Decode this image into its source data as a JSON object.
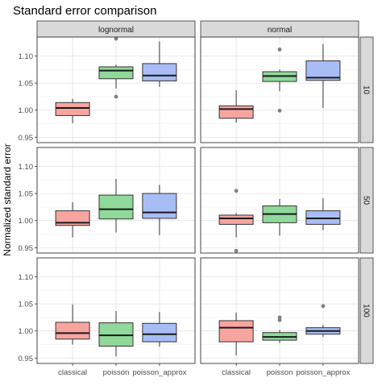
{
  "chart_data": {
    "type": "boxplot",
    "title": "Standard error comparison",
    "xlabel": "",
    "ylabel": "Normalized standard error",
    "categories": [
      "classical",
      "poisson",
      "poisson_approx"
    ],
    "column_facets": [
      "lognormal",
      "normal"
    ],
    "row_facets": [
      "10",
      "50",
      "100"
    ],
    "ylim": [
      0.94,
      1.135
    ],
    "yticks": [
      0.95,
      1.0,
      1.05,
      1.1
    ],
    "ytick_labels": [
      "0.95",
      "1.00",
      "1.05",
      "1.10"
    ],
    "grid": true,
    "colors": {
      "classical": "#f8a5a0",
      "poisson": "#8fd99a",
      "poisson_approx": "#a8bdf5",
      "strip_fill": "#d9d9d9",
      "outlier": "#7f7f7f"
    },
    "panels": [
      {
        "col": "lognormal",
        "row": "10",
        "boxes": [
          {
            "category": "classical",
            "min": 0.976,
            "q1": 0.99,
            "median": 1.004,
            "q3": 1.014,
            "max": 1.021,
            "outliers": []
          },
          {
            "category": "poisson",
            "min": 1.04,
            "q1": 1.058,
            "median": 1.073,
            "q3": 1.08,
            "max": 1.084,
            "outliers": [
              1.132,
              1.025
            ]
          },
          {
            "category": "poisson_approx",
            "min": 1.043,
            "q1": 1.054,
            "median": 1.064,
            "q3": 1.086,
            "max": 1.127,
            "outliers": []
          }
        ]
      },
      {
        "col": "normal",
        "row": "10",
        "boxes": [
          {
            "category": "classical",
            "min": 0.977,
            "q1": 0.985,
            "median": 1.002,
            "q3": 1.008,
            "max": 1.037,
            "outliers": []
          },
          {
            "category": "poisson",
            "min": 1.035,
            "q1": 1.053,
            "median": 1.063,
            "q3": 1.071,
            "max": 1.075,
            "outliers": [
              1.112,
              0.999
            ]
          },
          {
            "category": "poisson_approx",
            "min": 1.004,
            "q1": 1.055,
            "median": 1.06,
            "q3": 1.091,
            "max": 1.122,
            "outliers": []
          }
        ]
      },
      {
        "col": "lognormal",
        "row": "50",
        "boxes": [
          {
            "category": "classical",
            "min": 0.969,
            "q1": 0.991,
            "median": 0.996,
            "q3": 1.018,
            "max": 1.034,
            "outliers": []
          },
          {
            "category": "poisson",
            "min": 0.978,
            "q1": 1.003,
            "median": 1.021,
            "q3": 1.047,
            "max": 1.077,
            "outliers": []
          },
          {
            "category": "poisson_approx",
            "min": 0.973,
            "q1": 1.004,
            "median": 1.015,
            "q3": 1.05,
            "max": 1.066,
            "outliers": []
          }
        ]
      },
      {
        "col": "normal",
        "row": "50",
        "boxes": [
          {
            "category": "classical",
            "min": 0.969,
            "q1": 0.993,
            "median": 1.004,
            "q3": 1.01,
            "max": 1.014,
            "outliers": [
              1.055,
              0.944
            ]
          },
          {
            "category": "poisson",
            "min": 0.972,
            "q1": 0.996,
            "median": 1.012,
            "q3": 1.027,
            "max": 1.04,
            "outliers": []
          },
          {
            "category": "poisson_approx",
            "min": 0.982,
            "q1": 0.993,
            "median": 1.004,
            "q3": 1.018,
            "max": 1.041,
            "outliers": []
          }
        ]
      },
      {
        "col": "lognormal",
        "row": "100",
        "boxes": [
          {
            "category": "classical",
            "min": 0.975,
            "q1": 0.985,
            "median": 0.996,
            "q3": 1.016,
            "max": 1.049,
            "outliers": []
          },
          {
            "category": "poisson",
            "min": 0.953,
            "q1": 0.972,
            "median": 0.992,
            "q3": 1.015,
            "max": 1.037,
            "outliers": []
          },
          {
            "category": "poisson_approx",
            "min": 0.971,
            "q1": 0.98,
            "median": 0.994,
            "q3": 1.014,
            "max": 1.035,
            "outliers": []
          }
        ]
      },
      {
        "col": "normal",
        "row": "100",
        "boxes": [
          {
            "category": "classical",
            "min": 0.955,
            "q1": 0.98,
            "median": 1.006,
            "q3": 1.019,
            "max": 1.034,
            "outliers": []
          },
          {
            "category": "poisson",
            "min": 0.978,
            "q1": 0.983,
            "median": 0.989,
            "q3": 0.997,
            "max": 1.002,
            "outliers": [
              1.025,
              1.02
            ]
          },
          {
            "category": "poisson_approx",
            "min": 0.989,
            "q1": 0.994,
            "median": 1.0,
            "q3": 1.006,
            "max": 1.011,
            "outliers": [
              1.046
            ]
          }
        ]
      }
    ]
  }
}
